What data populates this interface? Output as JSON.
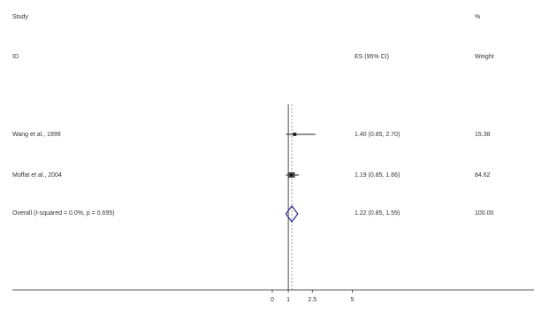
{
  "header": {
    "study_label": "Study",
    "id_label": "ID",
    "es_label": "ES (95% CI)",
    "pct_label": "%",
    "weight_label": "Weight"
  },
  "chart_data": {
    "type": "forest",
    "x_ticks": [
      "0",
      "1",
      "2.5",
      "5"
    ],
    "x_tick_values": [
      0,
      1,
      2.5,
      5
    ],
    "null_line": 1,
    "rows": [
      {
        "study": "Wang et al., 1999",
        "es": 1.4,
        "lo": 0.85,
        "hi": 2.7,
        "es_text": "1.40 (0.85, 2.70)",
        "weight": "15.38"
      },
      {
        "study": "Moffat et al., 2004",
        "es": 1.19,
        "lo": 0.85,
        "hi": 1.66,
        "es_text": "1.19 (0.85, 1.66)",
        "weight": "84.62"
      }
    ],
    "overall": {
      "label": "Overall (I-squared = 0.0%, p = 0.695)",
      "es": 1.22,
      "lo": 0.85,
      "hi": 1.59,
      "es_text": "1.22 (0.85, 1.59)",
      "weight": "100.00"
    },
    "colors": {
      "diamond": "#2b2b8c",
      "lines": "#222222"
    }
  }
}
